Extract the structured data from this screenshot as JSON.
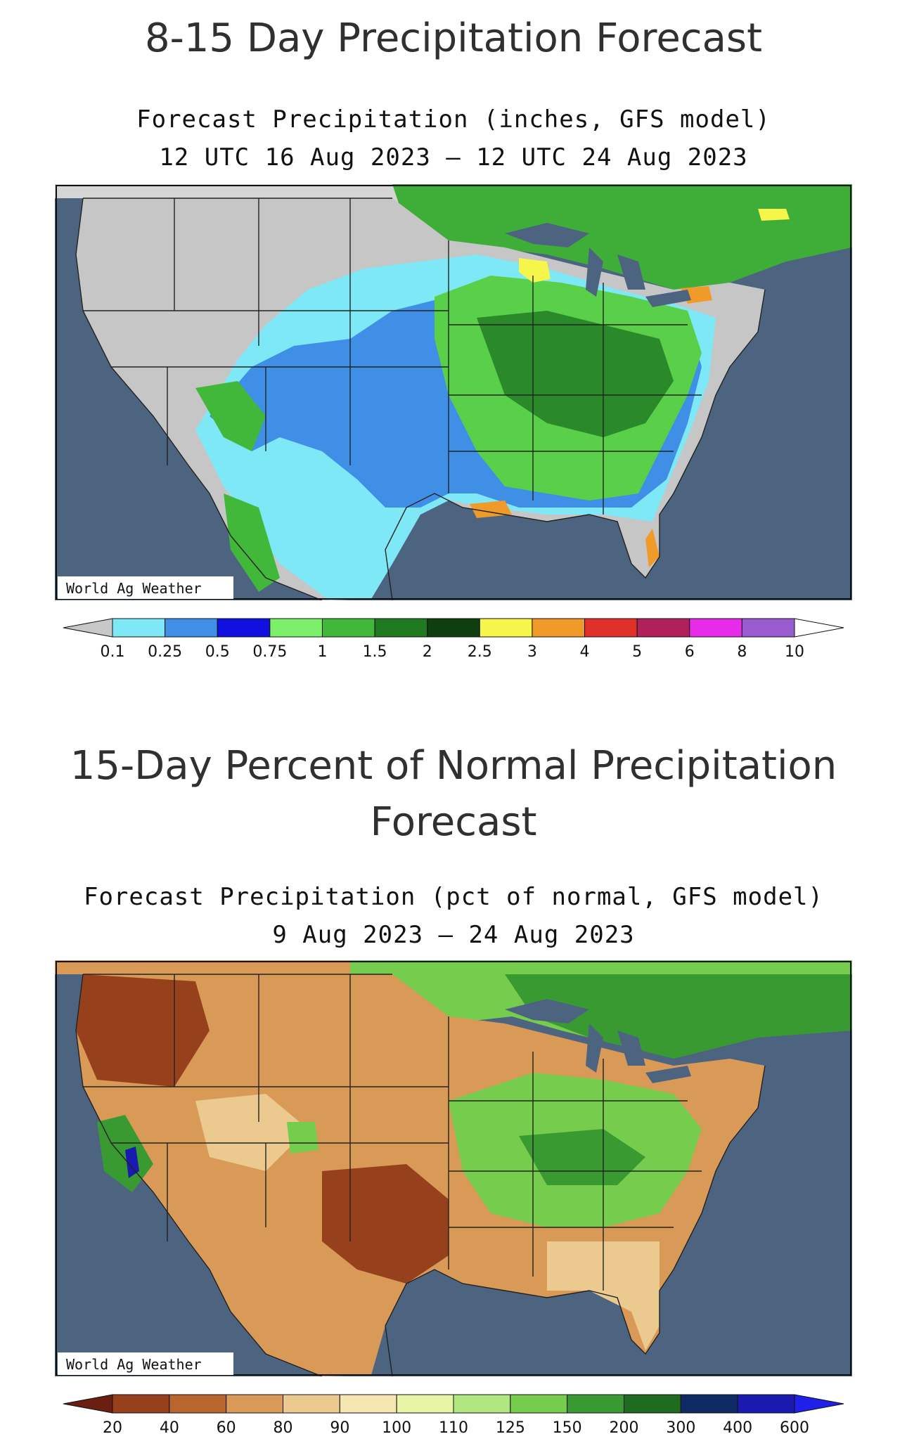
{
  "sections": [
    {
      "heading": "8-15 Day Precipitation Forecast",
      "title_line1": "Forecast Precipitation (inches, GFS model)",
      "title_line2": "12 UTC 16 Aug 2023 – 12 UTC 24 Aug 2023",
      "credit": "World Ag Weather",
      "legend": {
        "labels": [
          "0.1",
          "0.25",
          "0.5",
          "0.75",
          "1",
          "1.5",
          "2",
          "2.5",
          "3",
          "4",
          "5",
          "6",
          "8",
          "10"
        ],
        "colors": [
          "#c8c8c8",
          "#7fe8f7",
          "#3f8fe6",
          "#1010e0",
          "#7cf06a",
          "#41b83a",
          "#1f7a1f",
          "#0f3f0f",
          "#f5f54a",
          "#f09a2a",
          "#e0302a",
          "#b0205a",
          "#e82be8",
          "#9a5ad0",
          "#ffffff"
        ]
      }
    },
    {
      "heading": "15-Day Percent of Normal Precipitation Forecast",
      "title_line1": "Forecast Precipitation (pct of normal, GFS model)",
      "title_line2": "9 Aug 2023 – 24 Aug 2023",
      "credit": "World Ag Weather",
      "legend": {
        "labels": [
          "20",
          "40",
          "60",
          "80",
          "90",
          "100",
          "110",
          "125",
          "150",
          "200",
          "300",
          "400",
          "600"
        ],
        "colors": [
          "#6b1f10",
          "#96401c",
          "#b8652e",
          "#d99a58",
          "#ecc98e",
          "#f5e6b2",
          "#e8f5a6",
          "#b2e680",
          "#76cc4c",
          "#3a9a32",
          "#1f6b1f",
          "#102a66",
          "#1a1ab0",
          "#2020e8"
        ]
      }
    }
  ]
}
